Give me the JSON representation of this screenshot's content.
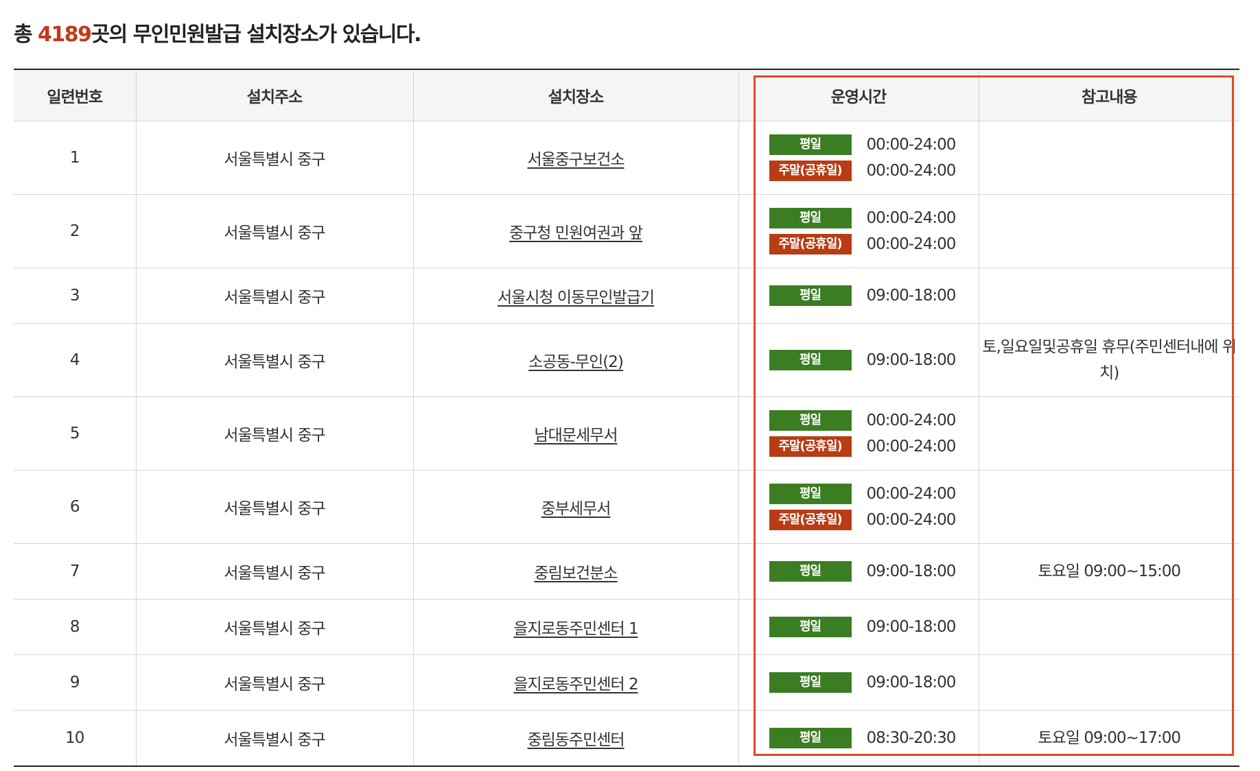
{
  "summary": {
    "prefix": "총 ",
    "count": "4189",
    "suffix": "곳의 무인민원발급 설치장소가 있습니다."
  },
  "table": {
    "headers": [
      "일련번호",
      "설치주소",
      "설치장소",
      "운영시간",
      "참고내용"
    ],
    "rows": [
      {
        "no": "1",
        "address": "서울특별시 중구",
        "place": "서울중구보건소",
        "hours": [
          {
            "badge": "평일",
            "time": "00:00-24:00"
          },
          {
            "badge": "주말(공휴일)",
            "time": "00:00-24:00"
          }
        ],
        "note": ""
      },
      {
        "no": "2",
        "address": "서울특별시 중구",
        "place": "중구청 민원여권과 앞",
        "hours": [
          {
            "badge": "평일",
            "time": "00:00-24:00"
          },
          {
            "badge": "주말(공휴일)",
            "time": "00:00-24:00"
          }
        ],
        "note": ""
      },
      {
        "no": "3",
        "address": "서울특별시 중구",
        "place": "서울시청 이동무인발급기",
        "hours": [
          {
            "badge": "평일",
            "time": "09:00-18:00"
          }
        ],
        "note": ""
      },
      {
        "no": "4",
        "address": "서울특별시 중구",
        "place": "소공동-무인(2)",
        "hours": [
          {
            "badge": "평일",
            "time": "09:00-18:00"
          }
        ],
        "note": "토,일요일및공휴일 휴무(주민센터내에 위치)"
      },
      {
        "no": "5",
        "address": "서울특별시 중구",
        "place": "남대문세무서",
        "hours": [
          {
            "badge": "평일",
            "time": "00:00-24:00"
          },
          {
            "badge": "주말(공휴일)",
            "time": "00:00-24:00"
          }
        ],
        "note": ""
      },
      {
        "no": "6",
        "address": "서울특별시 중구",
        "place": "중부세무서",
        "hours": [
          {
            "badge": "평일",
            "time": "00:00-24:00"
          },
          {
            "badge": "주말(공휴일)",
            "time": "00:00-24:00"
          }
        ],
        "note": ""
      },
      {
        "no": "7",
        "address": "서울특별시 중구",
        "place": "중림보건분소",
        "hours": [
          {
            "badge": "평일",
            "time": "09:00-18:00"
          }
        ],
        "note": "토요일 09:00~15:00"
      },
      {
        "no": "8",
        "address": "서울특별시 중구",
        "place": "을지로동주민센터 1",
        "hours": [
          {
            "badge": "평일",
            "time": "09:00-18:00"
          }
        ],
        "note": ""
      },
      {
        "no": "9",
        "address": "서울특별시 중구",
        "place": "을지로동주민센터 2",
        "hours": [
          {
            "badge": "평일",
            "time": "09:00-18:00"
          }
        ],
        "note": ""
      },
      {
        "no": "10",
        "address": "서울특별시 중구",
        "place": "중림동주민센터",
        "hours": [
          {
            "badge": "평일",
            "time": "08:30-20:30"
          }
        ],
        "note": "토요일 09:00~17:00"
      }
    ]
  },
  "colors": {
    "count": "#c0391b",
    "weekday_badge": "#3b7d22",
    "weekend_badge": "#b83c14",
    "highlight_box": "#e04a22"
  }
}
